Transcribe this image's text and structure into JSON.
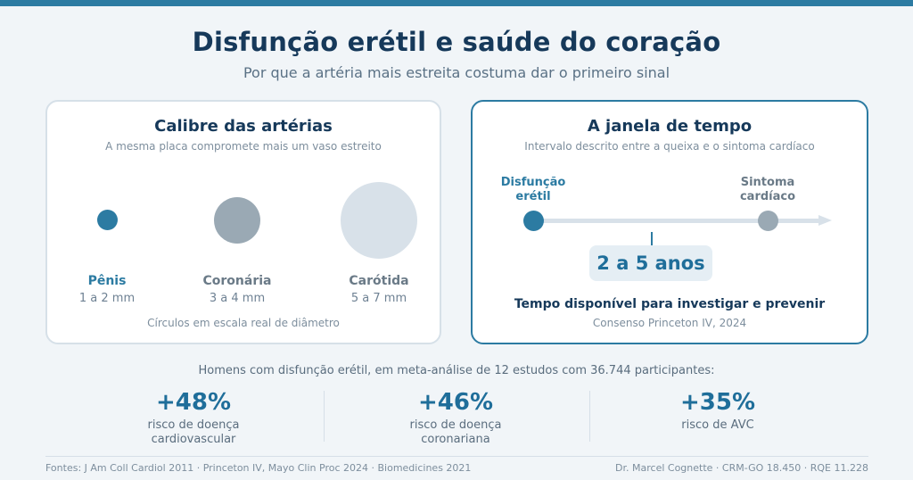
{
  "header": {
    "title": "Disfunção erétil e saúde do coração",
    "subtitle": "Por que a artéria mais estreita costuma dar o primeiro sinal"
  },
  "arteries_card": {
    "title": "Calibre das artérias",
    "subtitle": "A mesma placa compromete mais um vaso estreito",
    "items": [
      {
        "name": "Pênis",
        "size": "1 a 2 mm",
        "color": "#2c7ba2"
      },
      {
        "name": "Coronária",
        "size": "3 a 4 mm",
        "color": "#9aa9b4"
      },
      {
        "name": "Carótida",
        "size": "5 a 7 mm",
        "color": "#d8e1e9"
      }
    ],
    "note": "Círculos em escala real de diâmetro"
  },
  "window_card": {
    "title": "A janela de tempo",
    "subtitle": "Intervalo descrito entre a queixa e o sintoma cardíaco",
    "start_label": "Disfunção erétil",
    "end_label": "Sintoma cardíaco",
    "range": "2 a 5 anos",
    "caption": "Tempo disponível para investigar e prevenir",
    "source": "Consenso Princeton IV, 2024"
  },
  "stats": {
    "intro": "Homens com disfunção erétil, em meta-análise de 12 estudos com 36.744 participantes:",
    "items": [
      {
        "value": "+48%",
        "label": "risco de doença cardiovascular"
      },
      {
        "value": "+46%",
        "label": "risco de doença coronariana"
      },
      {
        "value": "+35%",
        "label": "risco de AVC"
      }
    ]
  },
  "footer": {
    "sources": "Fontes: J Am Coll Cardiol 2011 · Princeton IV, Mayo Clin Proc 2024 · Biomedicines 2021",
    "author": "Dr. Marcel Cognette · CRM-GO 18.450 · RQE 11.228"
  },
  "colors": {
    "accent": "#2c7ba2",
    "dark": "#16395a",
    "gray": "#9aa9b4",
    "light": "#d8e1e9"
  }
}
